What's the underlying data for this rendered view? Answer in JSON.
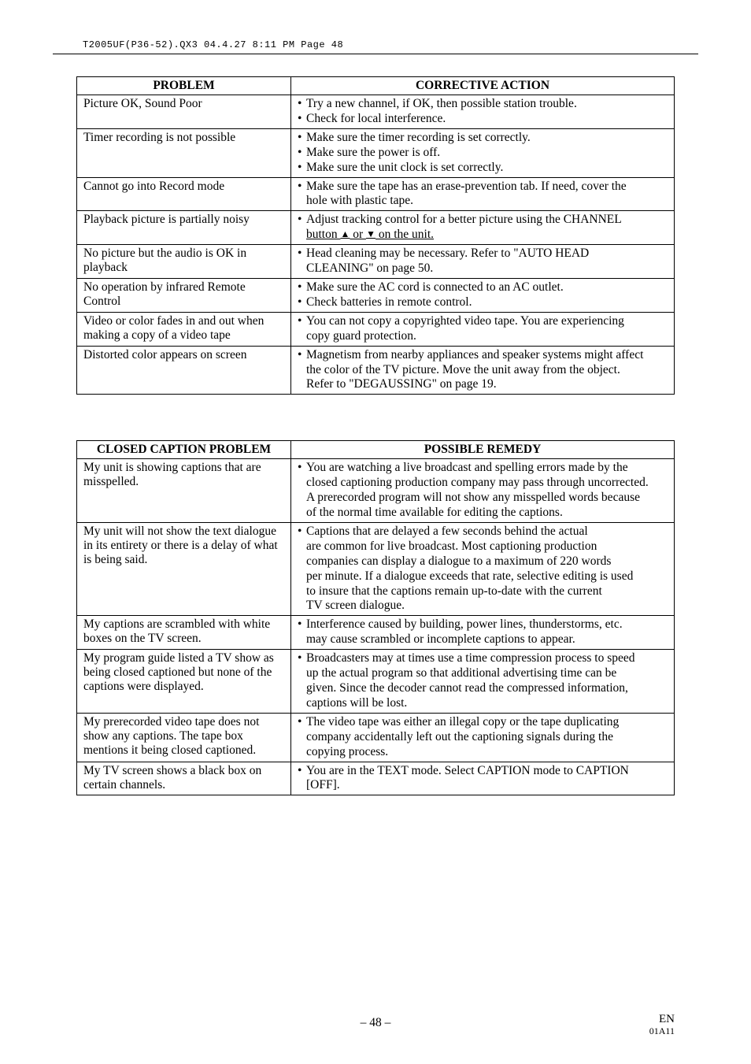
{
  "header": {
    "line": "T2005UF(P36-52).QX3  04.4.27  8:11 PM  Page 48"
  },
  "table1": {
    "head_left": "PROBLEM",
    "head_right": "CORRECTIVE ACTION",
    "rows": [
      {
        "left": "Picture OK, Sound Poor",
        "right_lines": [
          {
            "type": "bullet",
            "text": "Try a new channel, if OK, then possible station trouble."
          },
          {
            "type": "bullet",
            "text": "Check for local interference."
          }
        ]
      },
      {
        "left": "Timer recording is not possible",
        "right_lines": [
          {
            "type": "bullet",
            "text": "Make sure the timer recording is set correctly."
          },
          {
            "type": "bullet",
            "text": "Make sure the power is off."
          },
          {
            "type": "bullet",
            "text": "Make sure the unit clock is set correctly."
          }
        ]
      },
      {
        "left": "Cannot go into Record mode",
        "right_lines": [
          {
            "type": "bullet",
            "text": "Make sure the tape has an erase-prevention tab. If need, cover the"
          },
          {
            "type": "indent",
            "text": "hole with plastic tape."
          }
        ]
      },
      {
        "left": "Playback picture is partially noisy",
        "right_lines": [
          {
            "type": "bullet",
            "text": "Adjust tracking control for a better picture using the CHANNEL"
          },
          {
            "type": "indent_arrows",
            "prefix": "button ",
            "mid": " or ",
            "suffix": " on the unit.",
            "underline": true
          }
        ]
      },
      {
        "left": "No picture but the audio is OK in playback",
        "right_lines": [
          {
            "type": "bullet",
            "text": "Head cleaning may be necessary. Refer to \"AUTO HEAD"
          },
          {
            "type": "indent",
            "text": "CLEANING\" on page 50."
          }
        ]
      },
      {
        "left": "No operation by infrared Remote Control",
        "right_lines": [
          {
            "type": "bullet",
            "text": "Make sure the AC cord is connected to an AC outlet."
          },
          {
            "type": "bullet",
            "text": "Check batteries in remote control."
          }
        ]
      },
      {
        "left": "Video or color fades in and out when making a copy of a video tape",
        "right_lines": [
          {
            "type": "bullet",
            "text": "You can not copy a copyrighted video tape. You are experiencing"
          },
          {
            "type": "indent",
            "text": "copy guard protection."
          }
        ]
      },
      {
        "left": "Distorted color appears on screen",
        "right_lines": [
          {
            "type": "bullet",
            "text": "Magnetism from nearby appliances and speaker systems might affect"
          },
          {
            "type": "indent",
            "text": "the color of the TV picture. Move the unit away from the object."
          },
          {
            "type": "indent",
            "text": "Refer to \"DEGAUSSING\" on page 19."
          }
        ]
      }
    ]
  },
  "table2": {
    "head_left": "CLOSED CAPTION PROBLEM",
    "head_right": "POSSIBLE REMEDY",
    "rows": [
      {
        "left": "My unit is showing captions that are misspelled.",
        "right_lines": [
          {
            "type": "bullet",
            "text": "You are watching a live broadcast and spelling errors made by the"
          },
          {
            "type": "indent",
            "text": "closed captioning production company may pass through uncorrected."
          },
          {
            "type": "indent",
            "text": "A prerecorded program will not show any misspelled words because"
          },
          {
            "type": "indent",
            "text": "of the normal time available for editing the captions."
          }
        ]
      },
      {
        "left": "My unit will not show the text dialogue in its entirety or there is a delay of what is being said.",
        "right_lines": [
          {
            "type": "bullet",
            "text": "Captions that are delayed a few seconds behind the actual"
          },
          {
            "type": "indent",
            "text": "are common for live broadcast. Most captioning production"
          },
          {
            "type": "indent",
            "text": "companies can display a dialogue to a maximum of 220 words"
          },
          {
            "type": "indent",
            "text": "per minute. If a dialogue exceeds that rate, selective editing is used"
          },
          {
            "type": "indent",
            "text": "to insure that the captions remain up-to-date with the current"
          },
          {
            "type": "indent",
            "text": "TV screen dialogue."
          }
        ]
      },
      {
        "left": "My captions are scrambled with white boxes on the TV screen.",
        "right_lines": [
          {
            "type": "bullet",
            "text": "Interference caused by building, power lines, thunderstorms, etc."
          },
          {
            "type": "indent",
            "text": "may cause scrambled or incomplete captions to appear."
          }
        ]
      },
      {
        "left": "My program guide listed a TV show as being closed captioned but none of the captions were displayed.",
        "right_lines": [
          {
            "type": "bullet",
            "text": "Broadcasters may at times use a time compression process to speed"
          },
          {
            "type": "indent",
            "text": "up the actual program so that additional advertising time can be"
          },
          {
            "type": "indent",
            "text": "given. Since the decoder cannot read the compressed information,"
          },
          {
            "type": "indent",
            "text": "captions will be lost."
          }
        ]
      },
      {
        "left": "My prerecorded video tape does not show any captions. The tape box mentions it being closed captioned.",
        "right_lines": [
          {
            "type": "bullet",
            "text": "The video tape was either an illegal copy or the tape duplicating"
          },
          {
            "type": "indent",
            "text": "company accidentally left out the captioning signals during the"
          },
          {
            "type": "indent",
            "text": "copying process."
          }
        ]
      },
      {
        "left": "My TV screen shows a black box on certain channels.",
        "right_lines": [
          {
            "type": "bullet",
            "text": "You are in the TEXT mode. Select CAPTION mode to CAPTION"
          },
          {
            "type": "indent",
            "text": "[OFF]."
          }
        ]
      }
    ]
  },
  "footer": {
    "page": "– 48 –",
    "en": "EN",
    "code": "01A11"
  }
}
